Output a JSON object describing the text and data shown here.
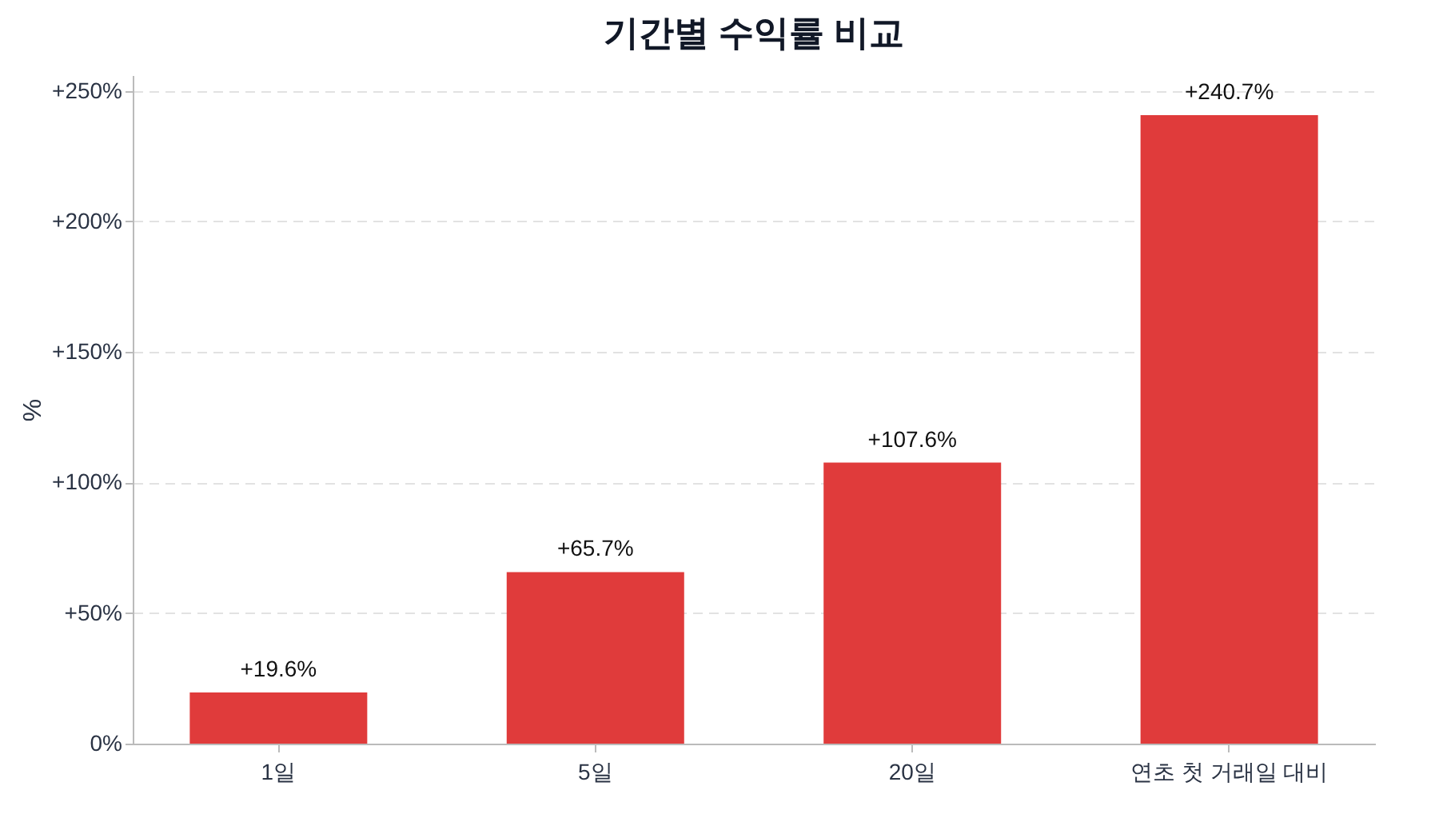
{
  "chart_data": {
    "type": "bar",
    "title": "기간별 수익률 비교",
    "ylabel": "%",
    "categories": [
      "1일",
      "5일",
      "20일",
      "연초 첫 거래일 대비"
    ],
    "values": [
      19.6,
      65.7,
      107.6,
      240.7
    ],
    "value_labels": [
      "+19.6%",
      "+65.7%",
      "+107.6%",
      "+240.7%"
    ],
    "color": "#e03b3b",
    "ylim": [
      0,
      256
    ],
    "yticks": [
      {
        "value": 0,
        "label": "0%"
      },
      {
        "value": 50,
        "label": "+50%"
      },
      {
        "value": 100,
        "label": "+100%"
      },
      {
        "value": 150,
        "label": "+150%"
      },
      {
        "value": 200,
        "label": "+200%"
      },
      {
        "value": 250,
        "label": "+250%"
      }
    ],
    "grid": "y"
  }
}
